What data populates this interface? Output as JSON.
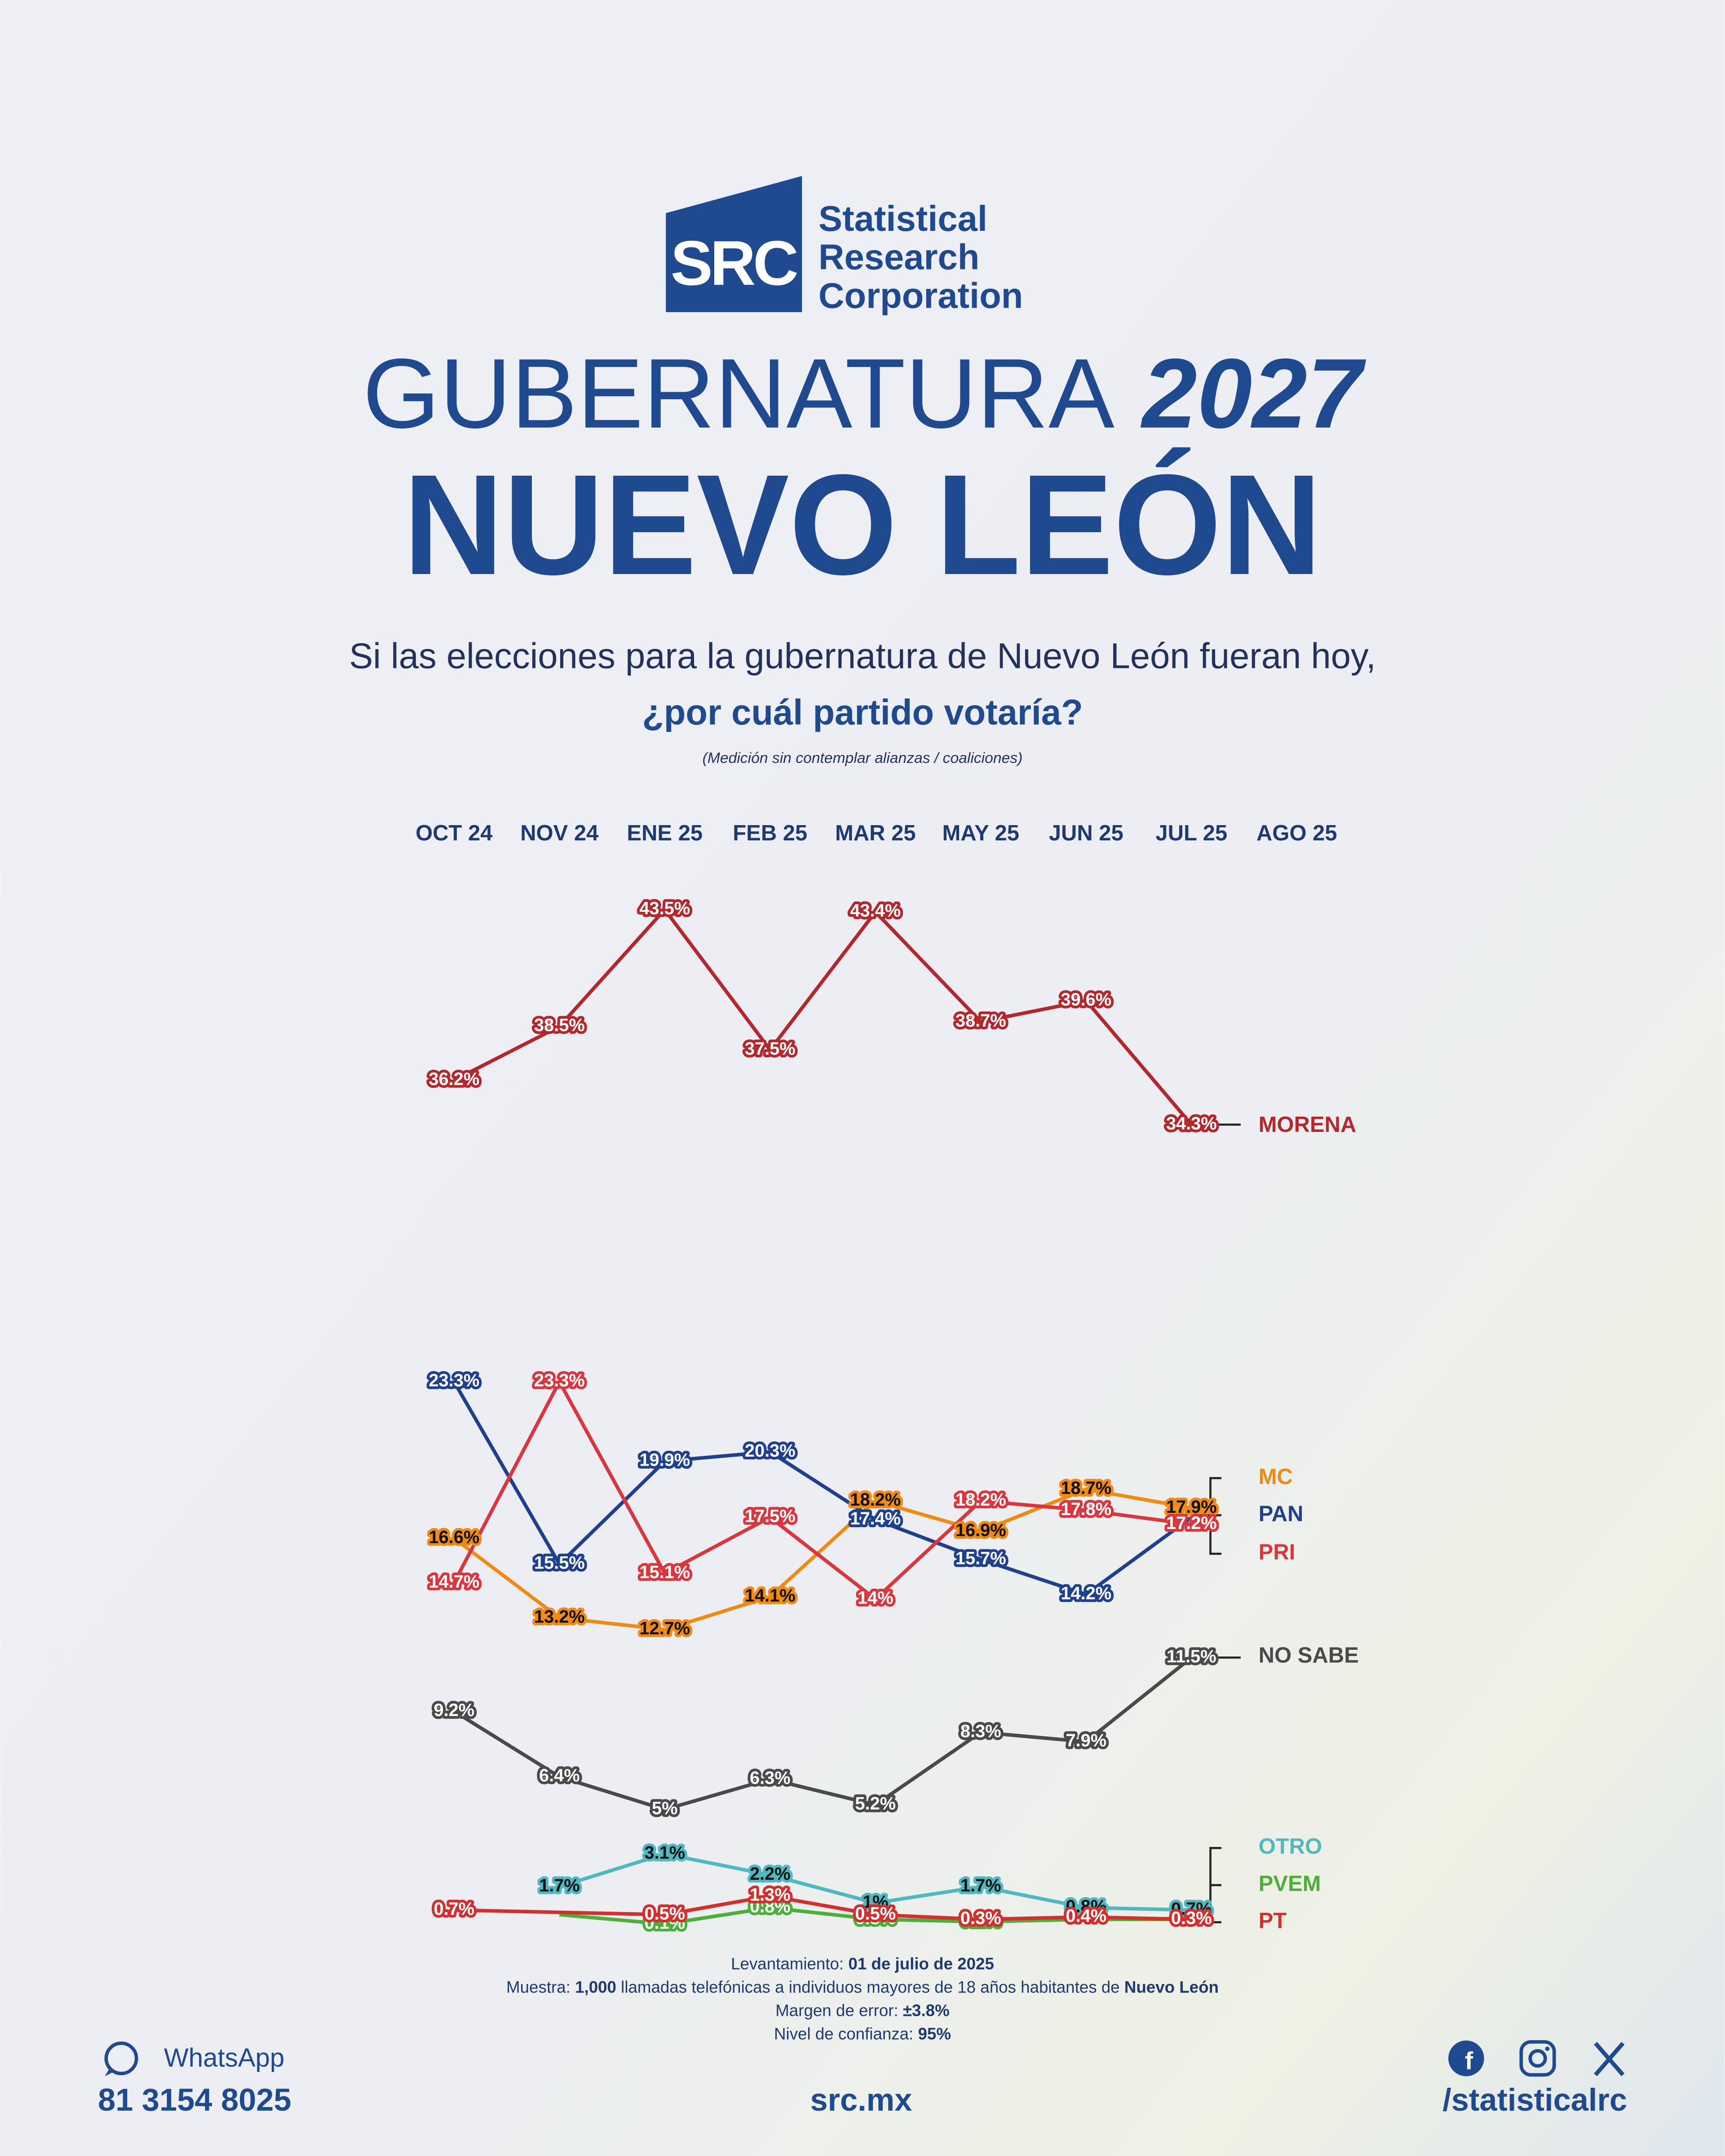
{
  "header": {
    "logo": "SRC",
    "company": [
      "Statistical",
      "Research",
      "Corporation"
    ],
    "title_word": "GUBERNATURA",
    "title_year": "2027",
    "state": "NUEVO LEÓN",
    "question_line1": "Si las elecciones para la gubernatura de Nuevo León fueran hoy,",
    "question_line2": "¿por cuál partido votaría?",
    "note": "(Medición sin contemplar alianzas / coaliciones)"
  },
  "chart_data": {
    "type": "line",
    "categories": [
      "OCT 24",
      "NOV 24",
      "ENE 25",
      "FEB 25",
      "MAR 25",
      "MAY 25",
      "JUN 25",
      "JUL 25",
      "AGO 25"
    ],
    "ylim": [
      0,
      45
    ],
    "series": [
      {
        "name": "MORENA",
        "color": "#b3282d",
        "label_text_color": "#ffffff",
        "values": [
          36.2,
          38.5,
          43.5,
          37.5,
          43.4,
          38.7,
          39.6,
          34.3,
          null
        ],
        "value_labels": [
          "36.2%",
          "38.5%",
          "43.5%",
          "37.5%",
          "43.4%",
          "38.7%",
          "39.6%",
          "34.3%",
          null
        ]
      },
      {
        "name": "MC",
        "color": "#f08a12",
        "label_text_color": "#111111",
        "values": [
          16.6,
          13.2,
          12.7,
          14.1,
          18.2,
          16.9,
          18.7,
          17.9,
          null
        ],
        "value_labels": [
          "16.6%",
          "13.2%",
          "12.7%",
          "14.1%",
          "18.2%",
          "16.9%",
          "18.7%",
          "17.9%",
          null
        ]
      },
      {
        "name": "PAN",
        "color": "#1f3f8f",
        "label_text_color": "#ffffff",
        "values": [
          23.3,
          15.5,
          19.9,
          20.3,
          17.4,
          15.7,
          14.2,
          17.5,
          null
        ],
        "value_labels": [
          "23.3%",
          "15.5%",
          "19.9%",
          "20.3%",
          "17.4%",
          "15.7%",
          "14.2%",
          null,
          null
        ]
      },
      {
        "name": "PRI",
        "color": "#d9363e",
        "label_text_color": "#ffffff",
        "values": [
          14.7,
          23.3,
          15.1,
          17.5,
          14,
          18.2,
          17.8,
          17.2,
          null
        ],
        "value_labels": [
          "14.7%",
          "23.3%",
          "15.1%",
          "17.5%",
          "14%",
          "18.2%",
          "17.8%",
          "17.2%",
          null
        ]
      },
      {
        "name": "NO SABE",
        "color": "#4a4a4a",
        "label_text_color": "#ffffff",
        "values": [
          9.2,
          6.4,
          5,
          6.3,
          5.2,
          8.3,
          7.9,
          11.5,
          null
        ],
        "value_labels": [
          "9.2%",
          "6.4%",
          "5%",
          "6.3%",
          "5.2%",
          "8.3%",
          "7.9%",
          "11.5%",
          null
        ]
      },
      {
        "name": "OTRO",
        "color": "#4fb8c0",
        "label_text_color": "#111111",
        "values": [
          null,
          1.7,
          3.1,
          2.2,
          1,
          1.7,
          0.8,
          0.7,
          null
        ],
        "value_labels": [
          null,
          "1.7%",
          "3.1%",
          "2.2%",
          "1%",
          "1.7%",
          "0.8%",
          "0.7%",
          null
        ]
      },
      {
        "name": "PVEM",
        "color": "#4caf3a",
        "label_text_color": "#ffffff",
        "values": [
          null,
          0.5,
          0.1,
          0.8,
          0.3,
          0.2,
          0.3,
          0.3,
          null
        ],
        "value_labels": [
          null,
          null,
          "0.1%",
          "0.8%",
          "0.3%",
          "0.2%",
          null,
          null,
          null
        ]
      },
      {
        "name": "PT",
        "color": "#d32f2f",
        "label_text_color": "#ffffff",
        "values": [
          0.7,
          0.6,
          0.5,
          1.3,
          0.5,
          0.3,
          0.4,
          0.3,
          null
        ],
        "value_labels": [
          "0.7%",
          null,
          "0.5%",
          "1.3%",
          "0.5%",
          "0.3%",
          "0.4%",
          "0.3%",
          null
        ]
      }
    ]
  },
  "methodology": {
    "date_label": "Levantamiento:",
    "date": "01 de julio de 2025",
    "sample_label": "Muestra:",
    "sample_size": "1,000",
    "sample_text": "llamadas telefónicas a individuos mayores de 18 años habitantes de",
    "sample_place": "Nuevo León",
    "error_label": "Margen de error:",
    "error": "±3.8%",
    "confidence_label": "Nivel de confianza:",
    "confidence": "95%"
  },
  "footer": {
    "whatsapp_label": "WhatsApp",
    "phone": "81 3154 8025",
    "website": "src.mx",
    "handle": "/statisticalrc"
  }
}
